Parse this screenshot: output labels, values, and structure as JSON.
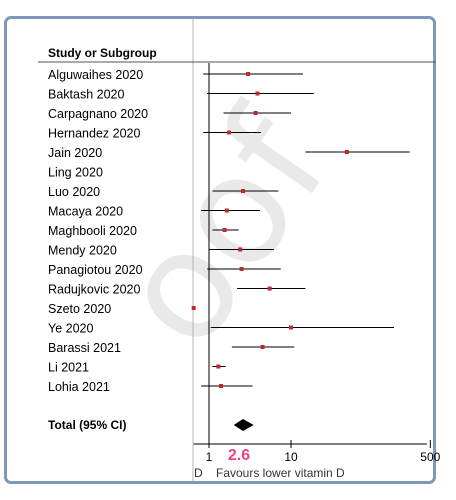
{
  "chart_data": {
    "type": "forest",
    "header": "Study or Subgroup",
    "studies": [
      {
        "label": "Alguwaihes 2020",
        "est": 3.0,
        "lo": 0.85,
        "hi": 14
      },
      {
        "label": "Baktash 2020",
        "est": 3.9,
        "lo": 0.95,
        "hi": 19
      },
      {
        "label": "Carpagnano 2020",
        "est": 3.7,
        "lo": 1.5,
        "hi": 10
      },
      {
        "label": "Hernandez 2020",
        "est": 1.75,
        "lo": 0.85,
        "hi": 4.3
      },
      {
        "label": "Jain 2020",
        "est": 48,
        "lo": 15,
        "hi": 280
      },
      {
        "label": "Ling 2020",
        "est": null,
        "lo": null,
        "hi": null
      },
      {
        "label": "Luo 2020",
        "est": 2.6,
        "lo": 1.1,
        "hi": 7
      },
      {
        "label": "Macaya 2020",
        "est": 1.65,
        "lo": 0.8,
        "hi": 4.2
      },
      {
        "label": "Maghbooli 2020",
        "est": 1.55,
        "lo": 1.1,
        "hi": 2.3
      },
      {
        "label": "Mendy 2020",
        "est": 2.4,
        "lo": 1.0,
        "hi": 6.2
      },
      {
        "label": "Panagiotou 2020",
        "est": 2.5,
        "lo": 0.95,
        "hi": 7.5
      },
      {
        "label": "Radujkovic 2020",
        "est": 5.5,
        "lo": 2.2,
        "hi": 15
      },
      {
        "label": "Szeto 2020",
        "est": 0.5,
        "lo": null,
        "hi": null
      },
      {
        "label": "Ye 2020",
        "est": 10,
        "lo": 1.05,
        "hi": 180
      },
      {
        "label": "Barassi 2021",
        "est": 4.5,
        "lo": 1.9,
        "hi": 11
      },
      {
        "label": "Li 2021",
        "est": 1.3,
        "lo": 1.1,
        "hi": 1.6
      },
      {
        "label": "Lohia 2021",
        "est": 1.4,
        "lo": 0.8,
        "hi": 3.4
      }
    ],
    "total": {
      "label": "Total (95% CI)",
      "est": 2.6,
      "lo": 2.0,
      "hi": 3.5
    },
    "x_scale": "log",
    "x_ticks": [
      "1",
      "10",
      "500"
    ],
    "xlim": [
      0.65,
      500
    ],
    "favours_label": "Favours lower vitamin D",
    "favours_left_fragment": "D",
    "annotation": "2.6",
    "watermark": "oof",
    "colors": {
      "point": "#c0282d",
      "frame": "#7e98b8",
      "annotation": "#e8477a",
      "line": "#000000"
    }
  }
}
